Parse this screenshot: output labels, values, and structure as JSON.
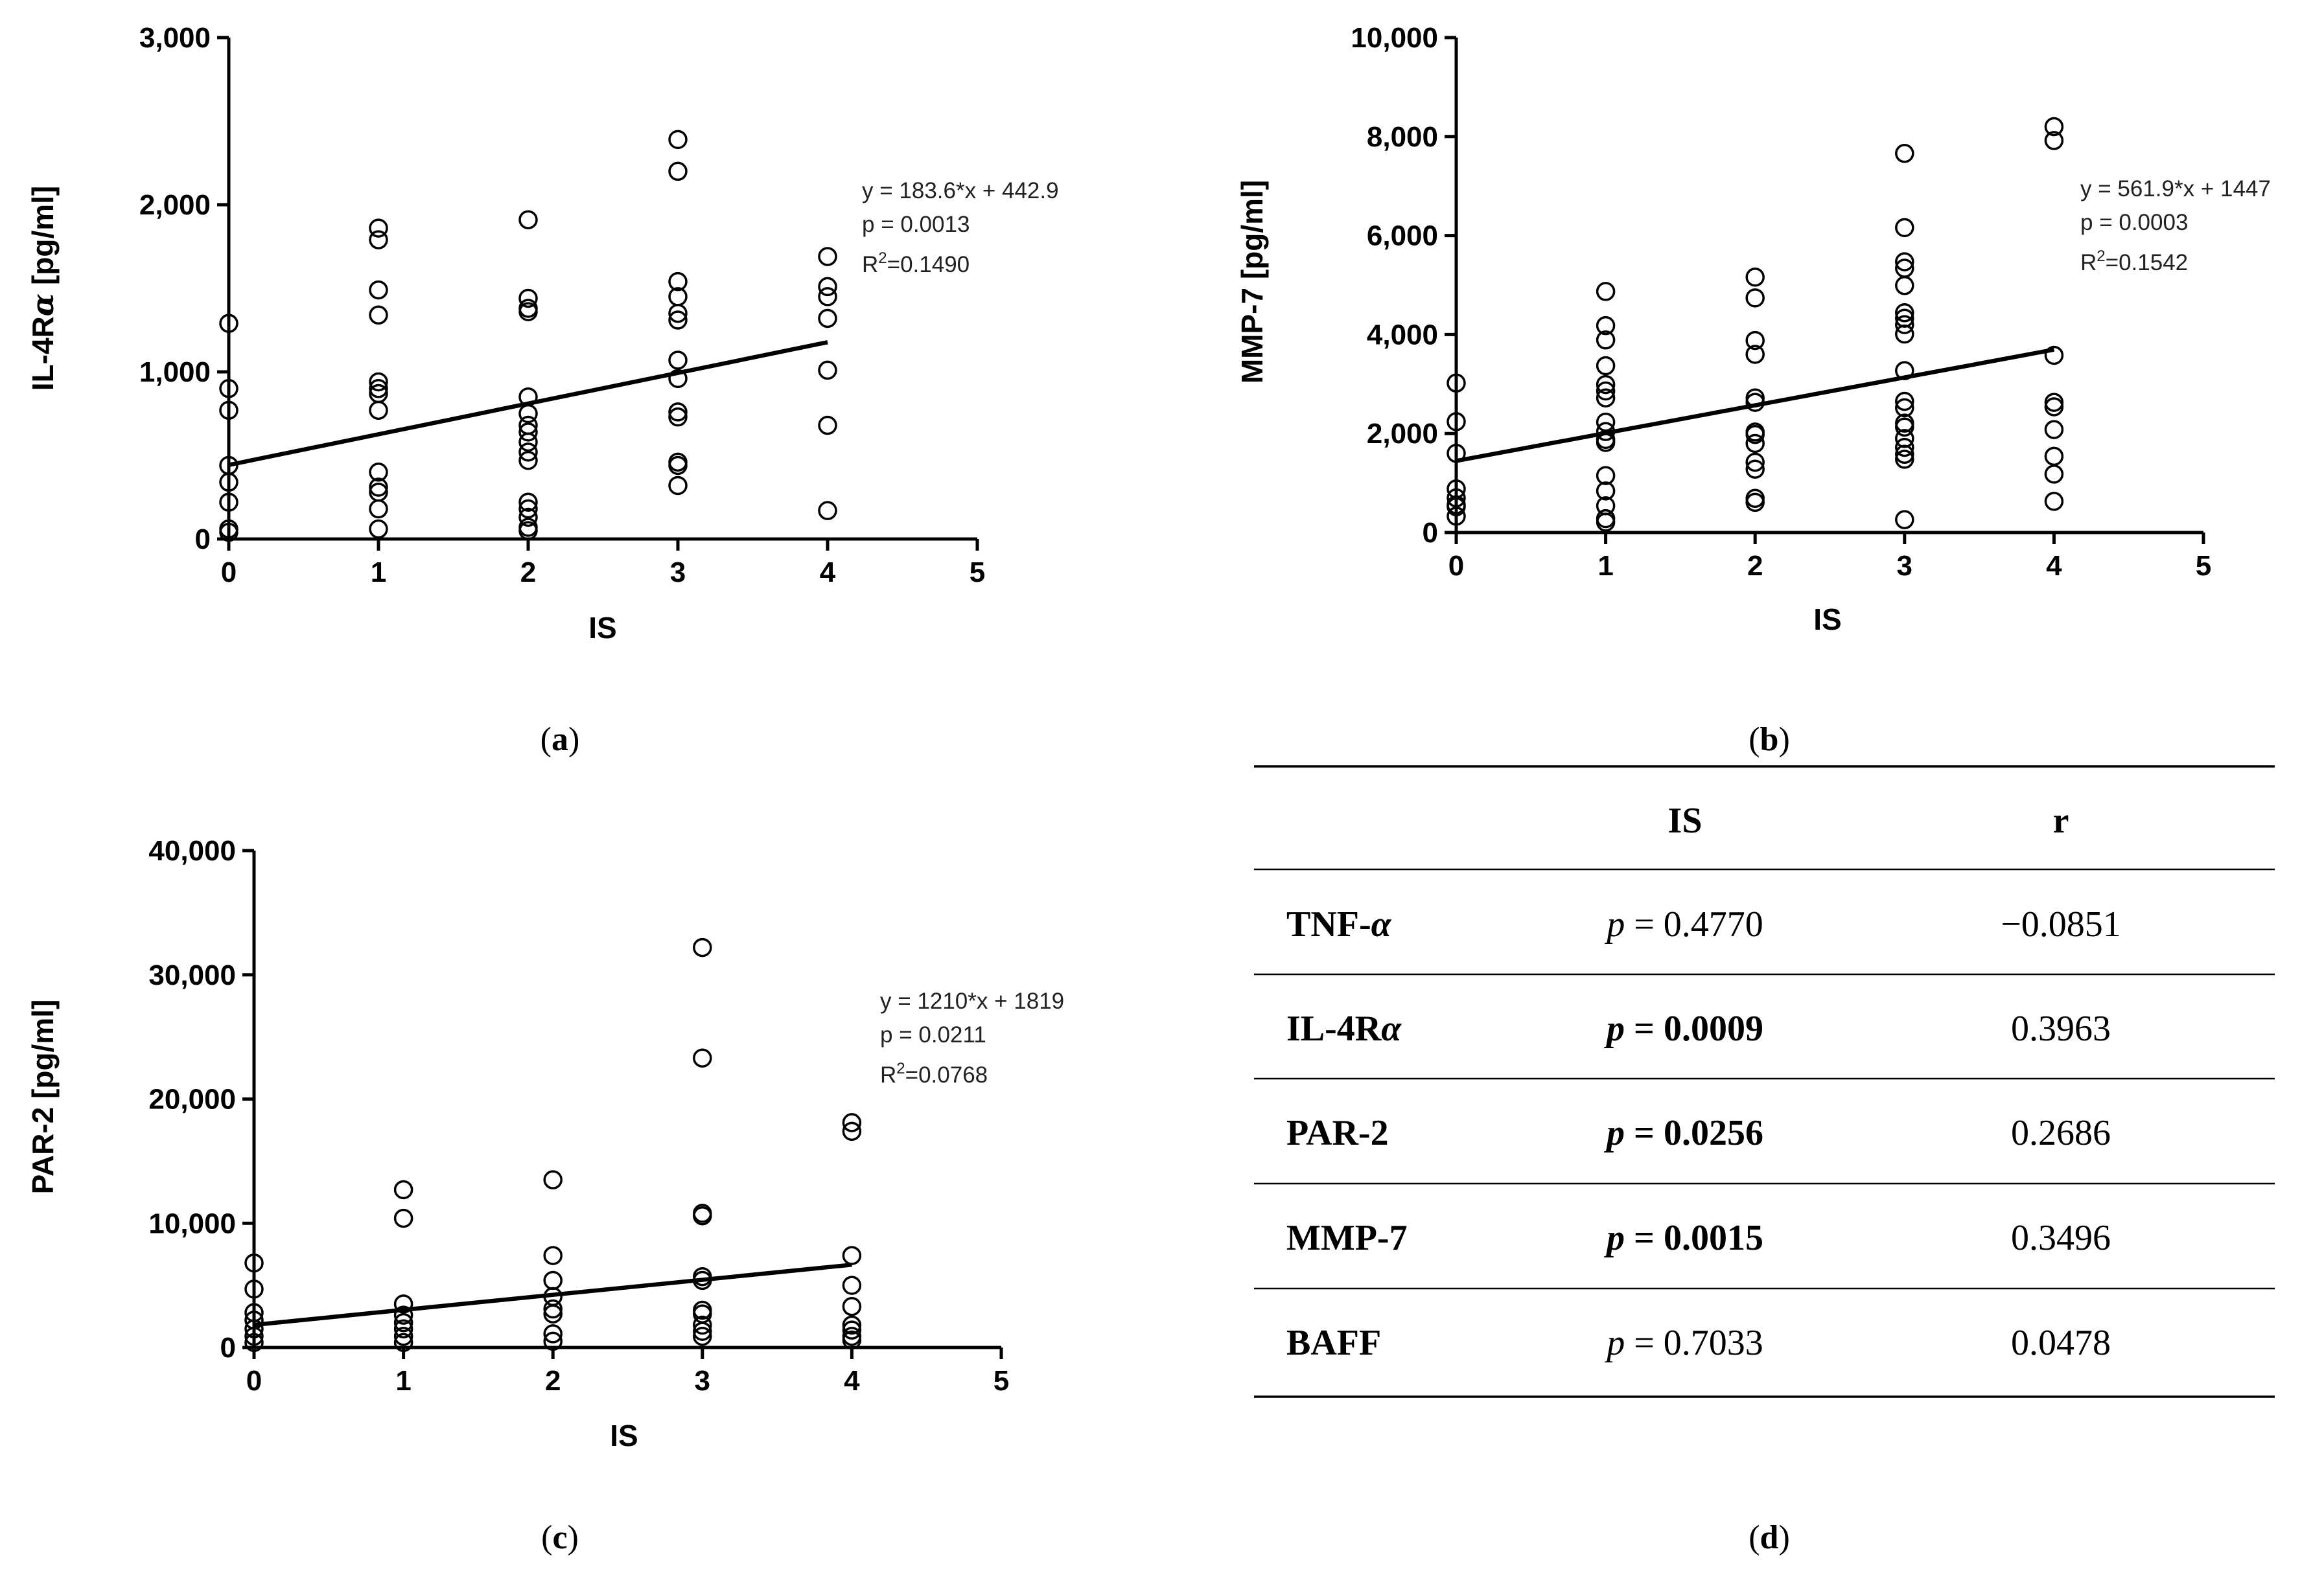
{
  "chart_data": [
    {
      "type": "scatter",
      "panel_label": "a",
      "xlabel": "IS",
      "ylabel_parts": [
        "IL-4R",
        "α",
        " [pg/ml]"
      ],
      "xlim": [
        0,
        5
      ],
      "ylim": [
        0,
        3000
      ],
      "xticks": [
        0,
        1,
        2,
        3,
        4,
        5
      ],
      "yticks": [
        0,
        1000,
        2000,
        3000
      ],
      "ytick_labels": [
        "0",
        "1,000",
        "2,000",
        "3,000"
      ],
      "fit": {
        "slope": 183.6,
        "intercept": 442.9,
        "x_range": [
          0,
          4
        ]
      },
      "annotation": {
        "equation": "y = 183.6*x + 442.9",
        "p": "p = 0.0013",
        "r2_value": "=0.1490"
      },
      "points": [
        [
          0,
          1290
        ],
        [
          0,
          900
        ],
        [
          0,
          770
        ],
        [
          0,
          440
        ],
        [
          0,
          340
        ],
        [
          0,
          220
        ],
        [
          0,
          60
        ],
        [
          0,
          40
        ],
        [
          1,
          1860
        ],
        [
          1,
          1790
        ],
        [
          1,
          1490
        ],
        [
          1,
          1340
        ],
        [
          1,
          940
        ],
        [
          1,
          900
        ],
        [
          1,
          870
        ],
        [
          1,
          770
        ],
        [
          1,
          400
        ],
        [
          1,
          310
        ],
        [
          1,
          280
        ],
        [
          1,
          180
        ],
        [
          1,
          60
        ],
        [
          2,
          1910
        ],
        [
          2,
          1440
        ],
        [
          2,
          1380
        ],
        [
          2,
          1360
        ],
        [
          2,
          850
        ],
        [
          2,
          750
        ],
        [
          2,
          680
        ],
        [
          2,
          640
        ],
        [
          2,
          580
        ],
        [
          2,
          520
        ],
        [
          2,
          470
        ],
        [
          2,
          220
        ],
        [
          2,
          180
        ],
        [
          2,
          130
        ],
        [
          2,
          70
        ],
        [
          2,
          50
        ],
        [
          3,
          2390
        ],
        [
          3,
          2200
        ],
        [
          3,
          1540
        ],
        [
          3,
          1450
        ],
        [
          3,
          1350
        ],
        [
          3,
          1310
        ],
        [
          3,
          1070
        ],
        [
          3,
          960
        ],
        [
          3,
          760
        ],
        [
          3,
          730
        ],
        [
          3,
          460
        ],
        [
          3,
          440
        ],
        [
          3,
          320
        ],
        [
          4,
          1690
        ],
        [
          4,
          1510
        ],
        [
          4,
          1450
        ],
        [
          4,
          1320
        ],
        [
          4,
          1010
        ],
        [
          4,
          680
        ],
        [
          4,
          170
        ]
      ]
    },
    {
      "type": "scatter",
      "panel_label": "b",
      "xlabel": "IS",
      "ylabel_parts": [
        "MMP-7 [pg/ml]"
      ],
      "xlim": [
        0,
        5
      ],
      "ylim": [
        0,
        10000
      ],
      "xticks": [
        0,
        1,
        2,
        3,
        4,
        5
      ],
      "yticks": [
        0,
        2000,
        4000,
        6000,
        8000,
        10000
      ],
      "ytick_labels": [
        "0",
        "2,000",
        "4,000",
        "6,000",
        "8,000",
        "10,000"
      ],
      "fit": {
        "slope": 561.9,
        "intercept": 1447,
        "x_range": [
          0,
          4
        ]
      },
      "annotation": {
        "equation": "y = 561.9*x + 1447",
        "p": "p = 0.0003",
        "r2_value": "=0.1542"
      },
      "points": [
        [
          0,
          3020
        ],
        [
          0,
          2240
        ],
        [
          0,
          1600
        ],
        [
          0,
          880
        ],
        [
          0,
          700
        ],
        [
          0,
          560
        ],
        [
          0,
          520
        ],
        [
          0,
          330
        ],
        [
          1,
          4870
        ],
        [
          1,
          4180
        ],
        [
          1,
          3890
        ],
        [
          1,
          3370
        ],
        [
          1,
          2990
        ],
        [
          1,
          2860
        ],
        [
          1,
          2720
        ],
        [
          1,
          2230
        ],
        [
          1,
          2040
        ],
        [
          1,
          1880
        ],
        [
          1,
          1820
        ],
        [
          1,
          1150
        ],
        [
          1,
          840
        ],
        [
          1,
          540
        ],
        [
          1,
          280
        ],
        [
          1,
          210
        ],
        [
          2,
          5160
        ],
        [
          2,
          4740
        ],
        [
          2,
          3880
        ],
        [
          2,
          3600
        ],
        [
          2,
          2720
        ],
        [
          2,
          2630
        ],
        [
          2,
          2030
        ],
        [
          2,
          1980
        ],
        [
          2,
          1800
        ],
        [
          2,
          1420
        ],
        [
          2,
          1280
        ],
        [
          2,
          690
        ],
        [
          2,
          610
        ],
        [
          3,
          7660
        ],
        [
          3,
          6160
        ],
        [
          3,
          5470
        ],
        [
          3,
          5340
        ],
        [
          3,
          4990
        ],
        [
          3,
          4440
        ],
        [
          3,
          4330
        ],
        [
          3,
          4200
        ],
        [
          3,
          4010
        ],
        [
          3,
          3270
        ],
        [
          3,
          2650
        ],
        [
          3,
          2520
        ],
        [
          3,
          2210
        ],
        [
          3,
          2130
        ],
        [
          3,
          1900
        ],
        [
          3,
          1720
        ],
        [
          3,
          1580
        ],
        [
          3,
          1480
        ],
        [
          3,
          260
        ],
        [
          4,
          8200
        ],
        [
          4,
          7920
        ],
        [
          4,
          3580
        ],
        [
          4,
          2630
        ],
        [
          4,
          2540
        ],
        [
          4,
          2080
        ],
        [
          4,
          1540
        ],
        [
          4,
          1180
        ],
        [
          4,
          630
        ]
      ]
    },
    {
      "type": "scatter",
      "panel_label": "c",
      "xlabel": "IS",
      "ylabel_parts": [
        "PAR-2 [pg/ml]"
      ],
      "xlim": [
        0,
        5
      ],
      "ylim": [
        0,
        40000
      ],
      "xticks": [
        0,
        1,
        2,
        3,
        4,
        5
      ],
      "yticks": [
        0,
        10000,
        20000,
        30000,
        40000
      ],
      "ytick_labels": [
        "0",
        "10,000",
        "20,000",
        "30,000",
        "40,000"
      ],
      "fit": {
        "slope": 1210,
        "intercept": 1819,
        "x_range": [
          0,
          4
        ]
      },
      "annotation": {
        "equation": "y = 1210*x + 1819",
        "p": "p = 0.0211",
        "r2_value": "=0.0768"
      },
      "points": [
        [
          0,
          6800
        ],
        [
          0,
          4700
        ],
        [
          0,
          2800
        ],
        [
          0,
          2200
        ],
        [
          0,
          1500
        ],
        [
          0,
          900
        ],
        [
          0,
          400
        ],
        [
          1,
          12700
        ],
        [
          1,
          10400
        ],
        [
          1,
          3500
        ],
        [
          1,
          2600
        ],
        [
          1,
          2000
        ],
        [
          1,
          1500
        ],
        [
          1,
          900
        ],
        [
          1,
          400
        ],
        [
          2,
          13500
        ],
        [
          2,
          7400
        ],
        [
          2,
          5400
        ],
        [
          2,
          4100
        ],
        [
          2,
          3100
        ],
        [
          2,
          2700
        ],
        [
          2,
          1100
        ],
        [
          2,
          500
        ],
        [
          3,
          32200
        ],
        [
          3,
          23300
        ],
        [
          3,
          10800
        ],
        [
          3,
          10600
        ],
        [
          3,
          5700
        ],
        [
          3,
          5400
        ],
        [
          3,
          3000
        ],
        [
          3,
          2700
        ],
        [
          3,
          1800
        ],
        [
          3,
          1300
        ],
        [
          3,
          900
        ],
        [
          4,
          18100
        ],
        [
          4,
          17400
        ],
        [
          4,
          7400
        ],
        [
          4,
          5000
        ],
        [
          4,
          3300
        ],
        [
          4,
          1800
        ],
        [
          4,
          1400
        ],
        [
          4,
          900
        ],
        [
          4,
          600
        ]
      ]
    },
    {
      "type": "table",
      "panel_label": "d",
      "columns": [
        "",
        "IS",
        "r"
      ],
      "rows": [
        {
          "name": "TNF-",
          "name_greek": "α",
          "p_label": "p",
          "p_value": " = 0.4770",
          "r": "−0.0851",
          "bold": false
        },
        {
          "name": "IL-4R",
          "name_greek": "α",
          "p_label": "p",
          "p_value": " = 0.0009",
          "r": "0.3963",
          "bold": true
        },
        {
          "name": "PAR-2",
          "name_greek": "",
          "p_label": "p",
          "p_value": " = 0.0256",
          "r": "0.2686",
          "bold": true
        },
        {
          "name": "MMP-7",
          "name_greek": "",
          "p_label": "p",
          "p_value": " = 0.0015",
          "r": "0.3496",
          "bold": true
        },
        {
          "name": "BAFF",
          "name_greek": "",
          "p_label": "p",
          "p_value": " = 0.7033",
          "r": "0.0478",
          "bold": false
        }
      ]
    }
  ],
  "annotation_labels": {
    "r2_prefix": "R",
    "r2_exp": "2"
  },
  "panel_paren_open": "(",
  "panel_paren_close": ")"
}
